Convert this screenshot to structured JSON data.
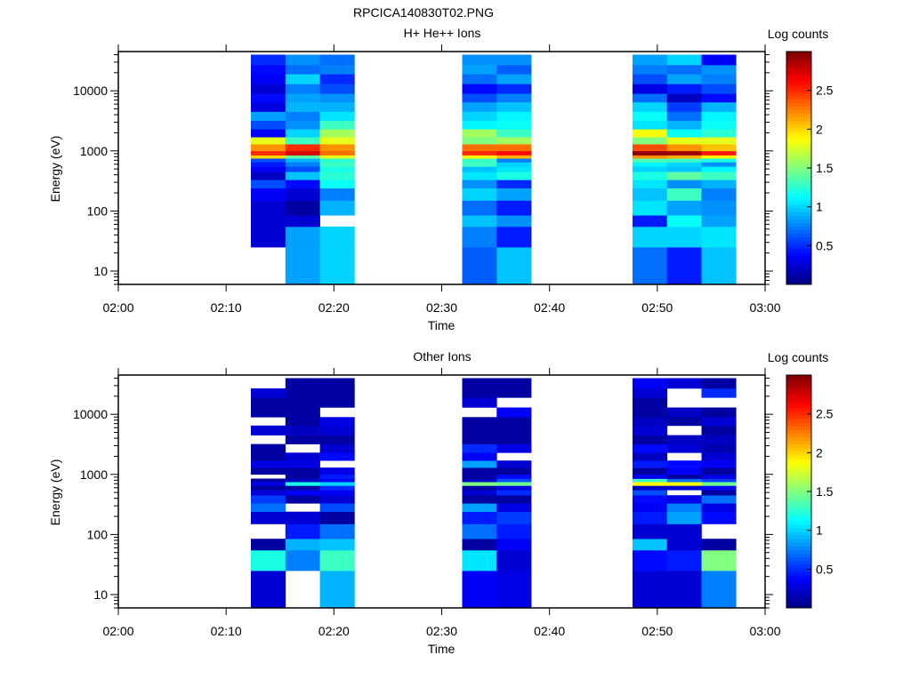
{
  "figure_title": "RPCICA140830T02.PNG",
  "chart_data": [
    {
      "type": "heatmap",
      "title": "H+ He++ Ions",
      "xlabel": "Time",
      "ylabel": "Energy (eV)",
      "colorbar_label": "Log counts",
      "x_ticks": [
        "02:00",
        "02:10",
        "02:20",
        "02:30",
        "02:40",
        "02:50",
        "03:00"
      ],
      "x_range_minutes": [
        0,
        60
      ],
      "y_scale": "log",
      "y_range": [
        6,
        45000
      ],
      "y_ticks": [
        10,
        100,
        1000,
        10000
      ],
      "y_tick_labels": [
        "10",
        "100",
        "1000",
        "10000"
      ],
      "colorbar_range": [
        0,
        3
      ],
      "colorbar_ticks": [
        0.5,
        1,
        1.5,
        2,
        2.5
      ],
      "colorbar_tick_labels": [
        "0.5",
        "1",
        "1.5",
        "2",
        "2.5"
      ],
      "time_bins_minutes": [
        [
          12.3,
          15.5
        ],
        [
          15.5,
          18.7
        ],
        [
          18.7,
          21.9
        ],
        [
          31.9,
          35.1
        ],
        [
          35.1,
          38.3
        ],
        [
          47.7,
          50.9
        ],
        [
          50.9,
          54.1
        ],
        [
          54.1,
          57.3
        ]
      ],
      "energy_bin_edges_ev": [
        6,
        25,
        55,
        85,
        150,
        240,
        330,
        450,
        550,
        650,
        750,
        850,
        1000,
        1300,
        1700,
        2300,
        3200,
        4500,
        6500,
        9000,
        13000,
        19000,
        27000,
        40000
      ],
      "log_counts": [
        [
          null,
          0.25,
          0.25,
          0.25,
          0.35,
          0.6,
          0.2,
          0.35,
          0.45,
          0.6,
          2.0,
          2.5,
          2.2,
          1.8,
          0.35,
          0.6,
          0.85,
          0.3,
          0.4,
          0.25,
          0.35,
          0.4,
          0.5
        ],
        [
          0.85,
          0.85,
          0.25,
          0.1,
          0.25,
          0.4,
          0.95,
          0.6,
          0.75,
          0.9,
          1.4,
          2.75,
          2.5,
          1.3,
          1.0,
          0.8,
          0.75,
          0.9,
          0.85,
          0.75,
          1.0,
          0.7,
          0.8
        ],
        [
          1.0,
          1.0,
          null,
          0.9,
          0.75,
          1.15,
          1.25,
          1.2,
          1.3,
          1.25,
          1.8,
          2.3,
          2.2,
          1.8,
          1.6,
          1.3,
          1.05,
          0.9,
          0.8,
          0.6,
          0.5,
          0.75,
          0.7
        ],
        [
          0.65,
          0.75,
          0.95,
          0.7,
          1.0,
          0.8,
          1.05,
          0.95,
          1.3,
          1.3,
          1.9,
          2.5,
          2.3,
          1.5,
          1.6,
          1.1,
          1.0,
          0.85,
          0.6,
          0.4,
          0.7,
          0.85,
          0.8
        ],
        [
          0.95,
          0.45,
          0.8,
          0.45,
          0.85,
          0.5,
          1.2,
          1.05,
          1.0,
          0.75,
          2.1,
          2.6,
          2.3,
          1.6,
          1.3,
          1.15,
          1.1,
          0.95,
          0.75,
          0.5,
          0.85,
          0.65,
          0.8
        ],
        [
          0.7,
          1.0,
          0.45,
          1.05,
          0.95,
          1.05,
          1.2,
          1.0,
          1.1,
          1.35,
          2.2,
          2.95,
          2.4,
          1.5,
          1.85,
          1.05,
          1.15,
          1.0,
          0.7,
          0.3,
          0.6,
          0.75,
          0.85
        ],
        [
          0.45,
          1.0,
          1.15,
          0.85,
          1.3,
          0.8,
          1.4,
          0.95,
          1.0,
          1.3,
          2.1,
          2.9,
          2.2,
          1.8,
          1.15,
          0.9,
          0.7,
          0.55,
          0.2,
          0.45,
          0.85,
          0.7,
          1.0
        ],
        [
          0.95,
          1.05,
          0.85,
          0.8,
          0.75,
          0.9,
          1.3,
          1.1,
          0.8,
          1.2,
          1.9,
          2.55,
          2.05,
          1.8,
          1.25,
          1.15,
          1.1,
          0.9,
          0.4,
          0.6,
          0.75,
          0.8,
          0.35
        ]
      ]
    },
    {
      "type": "heatmap",
      "title": "Other Ions",
      "xlabel": "Time",
      "ylabel": "Energy (eV)",
      "colorbar_label": "Log counts",
      "x_ticks": [
        "02:00",
        "02:10",
        "02:20",
        "02:30",
        "02:40",
        "02:50",
        "03:00"
      ],
      "x_range_minutes": [
        0,
        60
      ],
      "y_scale": "log",
      "y_range": [
        6,
        45000
      ],
      "y_ticks": [
        10,
        100,
        1000,
        10000
      ],
      "y_tick_labels": [
        "10",
        "100",
        "1000",
        "10000"
      ],
      "colorbar_range": [
        0,
        3
      ],
      "colorbar_ticks": [
        0.5,
        1,
        1.5,
        2,
        2.5
      ],
      "colorbar_tick_labels": [
        "0.5",
        "1",
        "1.5",
        "2",
        "2.5"
      ],
      "time_bins_minutes": [
        [
          12.3,
          15.5
        ],
        [
          15.5,
          18.7
        ],
        [
          18.7,
          21.9
        ],
        [
          31.9,
          35.1
        ],
        [
          35.1,
          38.3
        ],
        [
          47.7,
          50.9
        ],
        [
          50.9,
          54.1
        ],
        [
          54.1,
          57.3
        ]
      ],
      "energy_bin_edges_ev": [
        6,
        25,
        55,
        85,
        150,
        240,
        330,
        450,
        550,
        650,
        750,
        850,
        1000,
        1300,
        1700,
        2300,
        3200,
        4500,
        6500,
        9000,
        13000,
        19000,
        27000,
        40000
      ],
      "log_counts": [
        [
          0.25,
          1.2,
          0.1,
          null,
          0.25,
          0.7,
          0.55,
          0.25,
          0.1,
          0.3,
          0.1,
          null,
          0.1,
          0.3,
          0.1,
          0.1,
          null,
          0.25,
          null,
          0.1,
          0.1,
          0.25,
          null
        ],
        [
          null,
          0.75,
          0.9,
          0.45,
          0.25,
          null,
          0.1,
          0.35,
          0.1,
          1.2,
          0.2,
          0.1,
          0.1,
          0.3,
          0.25,
          null,
          0.1,
          0.2,
          0.1,
          0.1,
          0.1,
          0.1,
          0.1
        ],
        [
          0.9,
          1.3,
          0.95,
          0.7,
          0.1,
          0.6,
          0.25,
          0.35,
          0.5,
          1.0,
          0.35,
          0.45,
          0.3,
          null,
          0.4,
          0.25,
          0.1,
          0.25,
          0.3,
          null,
          0.1,
          0.1,
          0.1
        ],
        [
          0.35,
          1.05,
          0.1,
          0.7,
          0.45,
          0.85,
          0.1,
          0.25,
          0.1,
          1.5,
          0.2,
          0.1,
          0.1,
          0.85,
          0.35,
          0.5,
          0.1,
          0.1,
          0.1,
          null,
          0.25,
          0.1,
          0.1
        ],
        [
          0.3,
          0.25,
          0.35,
          0.45,
          0.55,
          0.3,
          0.1,
          0.5,
          0.3,
          1.45,
          0.6,
          0.4,
          0.1,
          0.25,
          null,
          0.3,
          0.1,
          0.1,
          0.1,
          0.35,
          null,
          0.1,
          0.1
        ],
        [
          0.25,
          0.4,
          0.95,
          0.25,
          0.45,
          0.35,
          0.4,
          0.6,
          0.2,
          1.9,
          1.3,
          0.35,
          0.1,
          0.45,
          0.2,
          0.4,
          0.1,
          0.25,
          0.2,
          0.1,
          0.1,
          0.25,
          0.35
        ],
        [
          0.25,
          0.45,
          0.25,
          0.25,
          0.85,
          0.75,
          0.3,
          null,
          0.25,
          1.85,
          0.7,
          0.1,
          0.35,
          0.4,
          null,
          0.25,
          0.2,
          null,
          0.1,
          0.2,
          null,
          null,
          0.25
        ],
        [
          0.75,
          1.5,
          0.1,
          null,
          0.4,
          0.3,
          0.7,
          0.1,
          0.35,
          1.45,
          0.55,
          0.3,
          0.1,
          0.35,
          0.25,
          0.15,
          0.2,
          0.1,
          0.25,
          0.1,
          null,
          0.5,
          0.1
        ]
      ]
    }
  ]
}
